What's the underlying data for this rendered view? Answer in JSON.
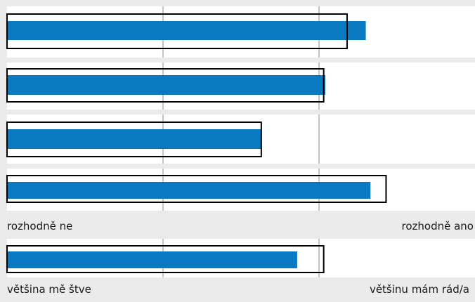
{
  "chart_data": {
    "type": "bar",
    "orientation": "horizontal",
    "xlim": [
      0,
      3
    ],
    "grid": true,
    "colors": {
      "bar": "#0979c1",
      "marker": "#000000",
      "panel": "#ffffff",
      "background": "#ebebeb"
    },
    "groups": [
      {
        "scale_min_label": "rozhodně ne",
        "scale_max_label": "rozhodně ano",
        "rows": [
          {
            "value": 2.3,
            "reference": 2.18
          },
          {
            "value": 2.04,
            "reference": 2.03
          },
          {
            "value": 1.63,
            "reference": 1.63
          },
          {
            "value": 2.33,
            "reference": 2.43
          }
        ]
      },
      {
        "scale_min_label": "většina mě štve",
        "scale_max_label": "většinu mám rád/a",
        "rows": [
          {
            "value": 1.86,
            "reference": 2.03
          }
        ]
      }
    ]
  }
}
